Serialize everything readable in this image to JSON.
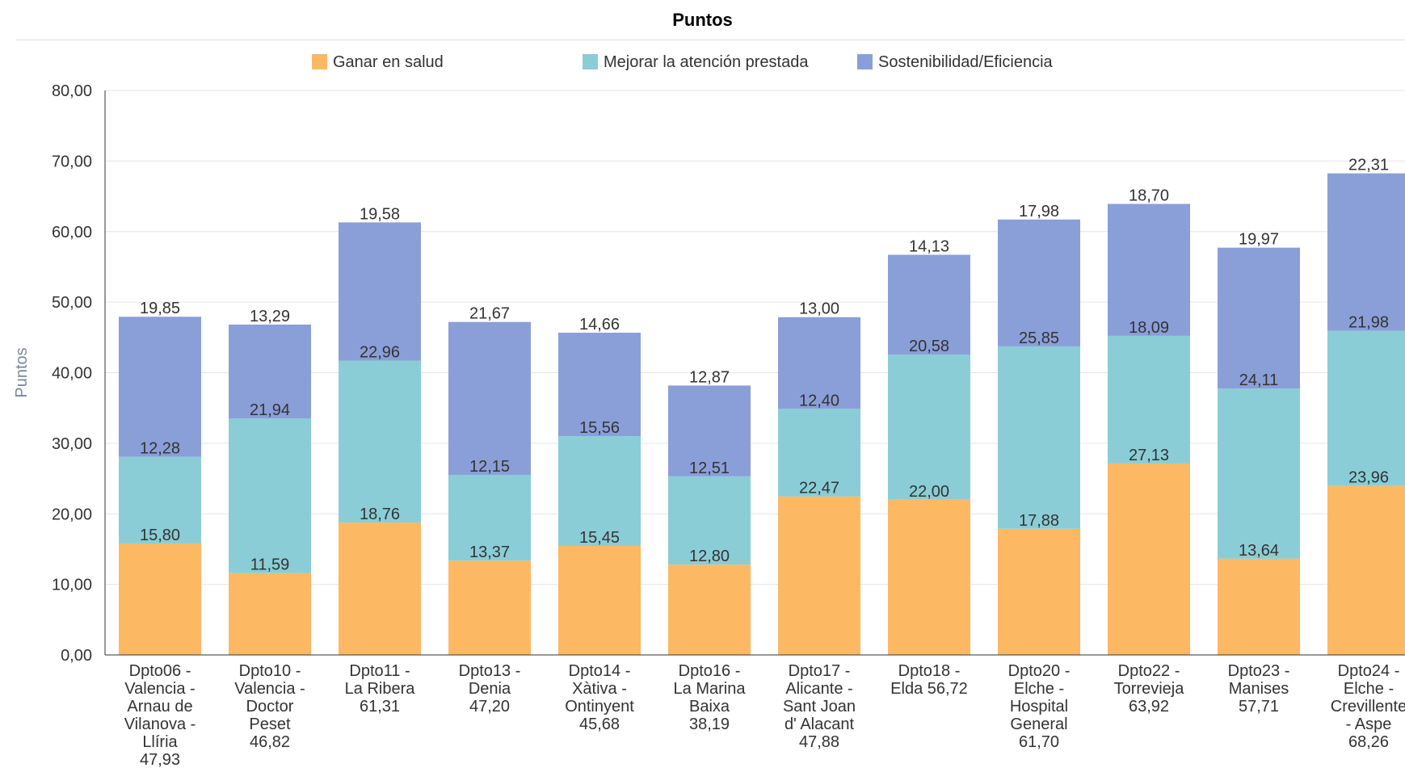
{
  "chart_data": {
    "type": "bar",
    "stacked": true,
    "title": "Puntos",
    "ylabel": "Puntos",
    "ylim": [
      0,
      80
    ],
    "yticks": [
      "0,00",
      "10,00",
      "20,00",
      "30,00",
      "40,00",
      "50,00",
      "60,00",
      "70,00",
      "80,00"
    ],
    "grid": true,
    "legend_position": "top",
    "categories": [
      [
        "Dpto06 -",
        "Valencia -",
        "Arnau de",
        "Vilanova -",
        "Llíria",
        "47,93"
      ],
      [
        "Dpto10 -",
        "Valencia -",
        "Doctor",
        "Peset",
        "46,82"
      ],
      [
        "Dpto11 -",
        "La Ribera",
        "61,31"
      ],
      [
        "Dpto13 -",
        "Denia",
        "47,20"
      ],
      [
        "Dpto14 -",
        "Xàtiva -",
        "Ontinyent",
        "45,68"
      ],
      [
        "Dpto16 -",
        "La Marina",
        "Baixa",
        "38,19"
      ],
      [
        "Dpto17 -",
        "Alicante -",
        "Sant Joan",
        "d' Alacant",
        "47,88"
      ],
      [
        "Dpto18 -",
        "Elda 56,72"
      ],
      [
        "Dpto20 -",
        "Elche -",
        "Hospital",
        "General",
        "61,70"
      ],
      [
        "Dpto22 -",
        "Torrevieja",
        "63,92"
      ],
      [
        "Dpto23 -",
        "Manises",
        "57,71"
      ],
      [
        "Dpto24 -",
        "Elche -",
        "Crevillente",
        "- Aspe",
        "68,26"
      ]
    ],
    "series": [
      {
        "name": "Ganar en salud",
        "color": "#fdb863",
        "values": [
          15.8,
          11.59,
          18.76,
          13.37,
          15.45,
          12.8,
          22.47,
          22.0,
          17.88,
          27.13,
          13.64,
          23.96
        ],
        "labels": [
          "15,80",
          "11,59",
          "18,76",
          "13,37",
          "15,45",
          "12,80",
          "22,47",
          "22,00",
          "17,88",
          "27,13",
          "13,64",
          "23,96"
        ]
      },
      {
        "name": "Mejorar la atención prestada",
        "color": "#8acdd7",
        "values": [
          12.28,
          21.94,
          22.96,
          12.15,
          15.56,
          12.51,
          12.4,
          20.58,
          25.85,
          18.09,
          24.11,
          21.98
        ],
        "labels": [
          "12,28",
          "21,94",
          "22,96",
          "12,15",
          "15,56",
          "12,51",
          "12,40",
          "20,58",
          "25,85",
          "18,09",
          "24,11",
          "21,98"
        ]
      },
      {
        "name": "Sostenibilidad/Eficiencia",
        "color": "#8a9fd8",
        "values": [
          19.85,
          13.29,
          19.58,
          21.67,
          14.66,
          12.87,
          13.0,
          14.13,
          17.98,
          18.7,
          19.97,
          22.31
        ],
        "labels": [
          "19,85",
          "13,29",
          "19,58",
          "21,67",
          "14,66",
          "12,87",
          "13,00",
          "14,13",
          "17,98",
          "18,70",
          "19,97",
          "22,31"
        ]
      }
    ]
  }
}
